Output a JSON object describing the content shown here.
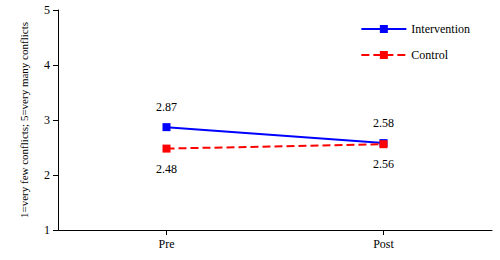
{
  "chart_data": {
    "type": "line",
    "y_label": "1=very few conflicts; 5=very many conflicts",
    "categories": [
      "Pre",
      "Post"
    ],
    "series": [
      {
        "name": "Intervention",
        "color": "#0000ff",
        "values": [
          2.87,
          2.58
        ],
        "marker": "square",
        "line_style": "solid"
      },
      {
        "name": "Control",
        "color": "#ff0000",
        "values": [
          2.48,
          2.56
        ],
        "marker": "square",
        "line_style": "dashed"
      }
    ],
    "ylim": [
      1,
      5
    ],
    "yticks": [
      1,
      2,
      3,
      4,
      5
    ],
    "grid": false,
    "legend": "top-right",
    "data_labels": true
  }
}
